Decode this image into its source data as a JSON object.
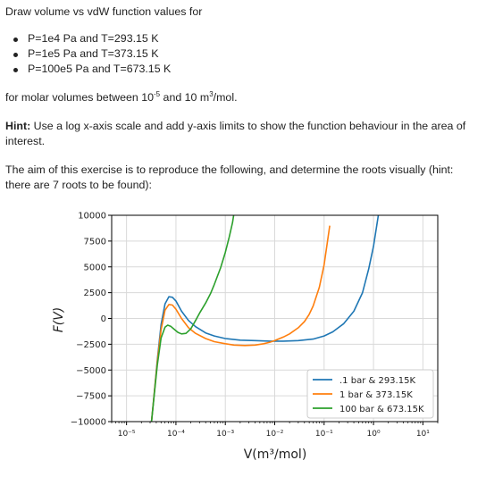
{
  "document": {
    "intro": "Draw volume vs vdW function values for",
    "cases": [
      "P=1e4 Pa and T=293.15 K",
      "P=1e5 Pa and T=373.15 K",
      "P=100e5 Pa and T=673.15 K"
    ],
    "range_text_1": "for molar volumes between 10",
    "range_exp": "-5",
    "range_text_2": " and 10 m",
    "range_unit_exp": "3",
    "range_text_3": "/mol.",
    "hint_label": "Hint:",
    "hint_text": " Use a log x-axis scale and add y-axis limits to show the function behaviour in the area of interest.",
    "aim_text": "The aim of this exercise is to reproduce the following, and determine the roots visually (hint: there are 7 roots to be found):"
  },
  "chart_data": {
    "type": "line",
    "xscale": "log",
    "xlim": [
      5e-06,
      20
    ],
    "ylim": [
      -10000,
      10000
    ],
    "xlabel": "V(m³/mol)",
    "ylabel": "F(V)",
    "grid": true,
    "legend_position": "lower-right",
    "x_ticks": [
      {
        "value": 1e-05,
        "label": "10⁻⁵"
      },
      {
        "value": 0.0001,
        "label": "10⁻⁴"
      },
      {
        "value": 0.001,
        "label": "10⁻³"
      },
      {
        "value": 0.01,
        "label": "10⁻²"
      },
      {
        "value": 0.1,
        "label": "10⁻¹"
      },
      {
        "value": 1,
        "label": "10⁰"
      },
      {
        "value": 10,
        "label": "10¹"
      }
    ],
    "y_ticks": [
      {
        "value": 10000,
        "label": "10000"
      },
      {
        "value": 7500,
        "label": "7500"
      },
      {
        "value": 5000,
        "label": "5000"
      },
      {
        "value": 2500,
        "label": "2500"
      },
      {
        "value": 0,
        "label": "0"
      },
      {
        "value": -2500,
        "label": "−2500"
      },
      {
        "value": -5000,
        "label": "−5000"
      },
      {
        "value": -7500,
        "label": "−7500"
      },
      {
        "value": -10000,
        "label": "−10000"
      }
    ],
    "series": [
      {
        "name": ".1 bar & 293.15K",
        "color": "#1f77b4",
        "x": [
          3.2e-05,
          3.6e-05,
          4.2e-05,
          5e-05,
          6e-05,
          7.2e-05,
          8.5e-05,
          0.0001,
          0.00013,
          0.00018,
          0.00025,
          0.0004,
          0.0006,
          0.001,
          0.002,
          0.004,
          0.008,
          0.015,
          0.03,
          0.06,
          0.1,
          0.15,
          0.25,
          0.4,
          0.6,
          0.8,
          1.0,
          1.3
        ],
        "y": [
          -10000,
          -7500,
          -4000,
          -600,
          1400,
          2100,
          2050,
          1700,
          700,
          -200,
          -800,
          -1400,
          -1700,
          -1950,
          -2100,
          -2150,
          -2200,
          -2200,
          -2150,
          -2000,
          -1700,
          -1300,
          -500,
          700,
          2500,
          4800,
          7000,
          10500
        ]
      },
      {
        "name": "1 bar & 373.15K",
        "color": "#ff7f0e",
        "x": [
          3.2e-05,
          3.6e-05,
          4.2e-05,
          5e-05,
          6e-05,
          7.2e-05,
          8.5e-05,
          0.0001,
          0.00013,
          0.00018,
          0.00025,
          0.0004,
          0.0006,
          0.001,
          0.0015,
          0.0025,
          0.004,
          0.006,
          0.008,
          0.01,
          0.015,
          0.02,
          0.03,
          0.04,
          0.05,
          0.06,
          0.08,
          0.1,
          0.13
        ],
        "y": [
          -10000,
          -7500,
          -4200,
          -1100,
          800,
          1350,
          1300,
          900,
          0,
          -900,
          -1450,
          -1950,
          -2250,
          -2450,
          -2580,
          -2620,
          -2580,
          -2450,
          -2300,
          -2150,
          -1800,
          -1500,
          -900,
          -300,
          400,
          1200,
          3000,
          5200,
          9000
        ]
      },
      {
        "name": "100 bar & 673.15K",
        "color": "#2ca02c",
        "x": [
          3.2e-05,
          3.6e-05,
          4.2e-05,
          5e-05,
          6e-05,
          6.8e-05,
          7.8e-05,
          9e-05,
          0.00011,
          0.00013,
          0.00016,
          0.0002,
          0.00025,
          0.0003,
          0.0004,
          0.0005,
          0.0006,
          0.0008,
          0.001,
          0.0012,
          0.0014,
          0.0015
        ],
        "y": [
          -10000,
          -7600,
          -4500,
          -1900,
          -850,
          -650,
          -750,
          -1000,
          -1350,
          -1500,
          -1450,
          -1000,
          -200,
          500,
          1500,
          2400,
          3300,
          4900,
          6400,
          7900,
          9300,
          10200
        ]
      }
    ]
  }
}
